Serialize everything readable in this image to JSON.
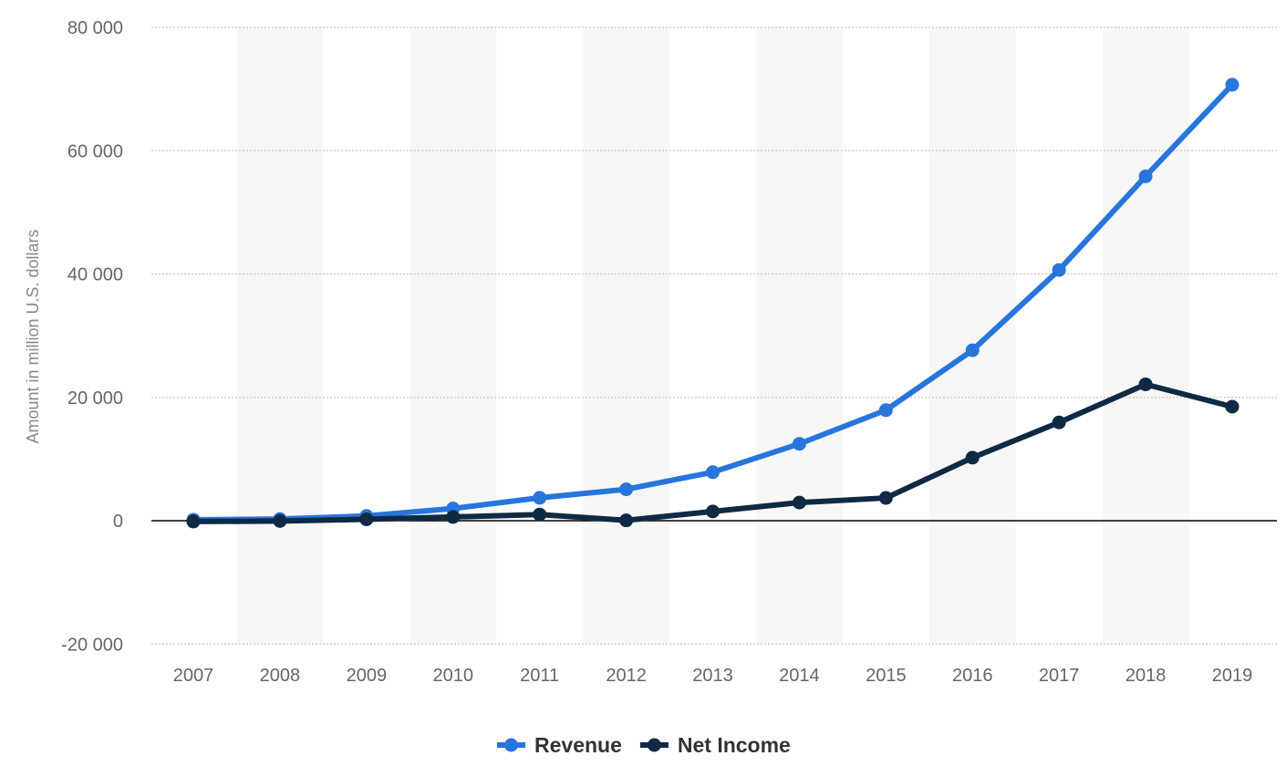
{
  "chart_data": {
    "type": "line",
    "title": "",
    "xlabel": "",
    "ylabel": "Amount in million U.S. dollars",
    "categories": [
      "2007",
      "2008",
      "2009",
      "2010",
      "2011",
      "2012",
      "2013",
      "2014",
      "2015",
      "2016",
      "2017",
      "2018",
      "2019"
    ],
    "ylim": [
      -20000,
      80000
    ],
    "yticks": [
      -20000,
      0,
      20000,
      40000,
      60000,
      80000
    ],
    "ytick_labels": [
      "-20 000",
      "0",
      "20 000",
      "40 000",
      "60 000",
      "80 000"
    ],
    "grid": true,
    "legend_position": "bottom-center",
    "series": [
      {
        "name": "Revenue",
        "color": "#2876dd",
        "values": [
          153,
          272,
          777,
          1974,
          3711,
          5089,
          7872,
          12466,
          17928,
          27638,
          40653,
          55838,
          70697
        ]
      },
      {
        "name": "Net Income",
        "color": "#0f2a44",
        "values": [
          -138,
          -56,
          229,
          606,
          1000,
          53,
          1500,
          2940,
          3688,
          10217,
          15934,
          22112,
          18485
        ]
      }
    ]
  }
}
